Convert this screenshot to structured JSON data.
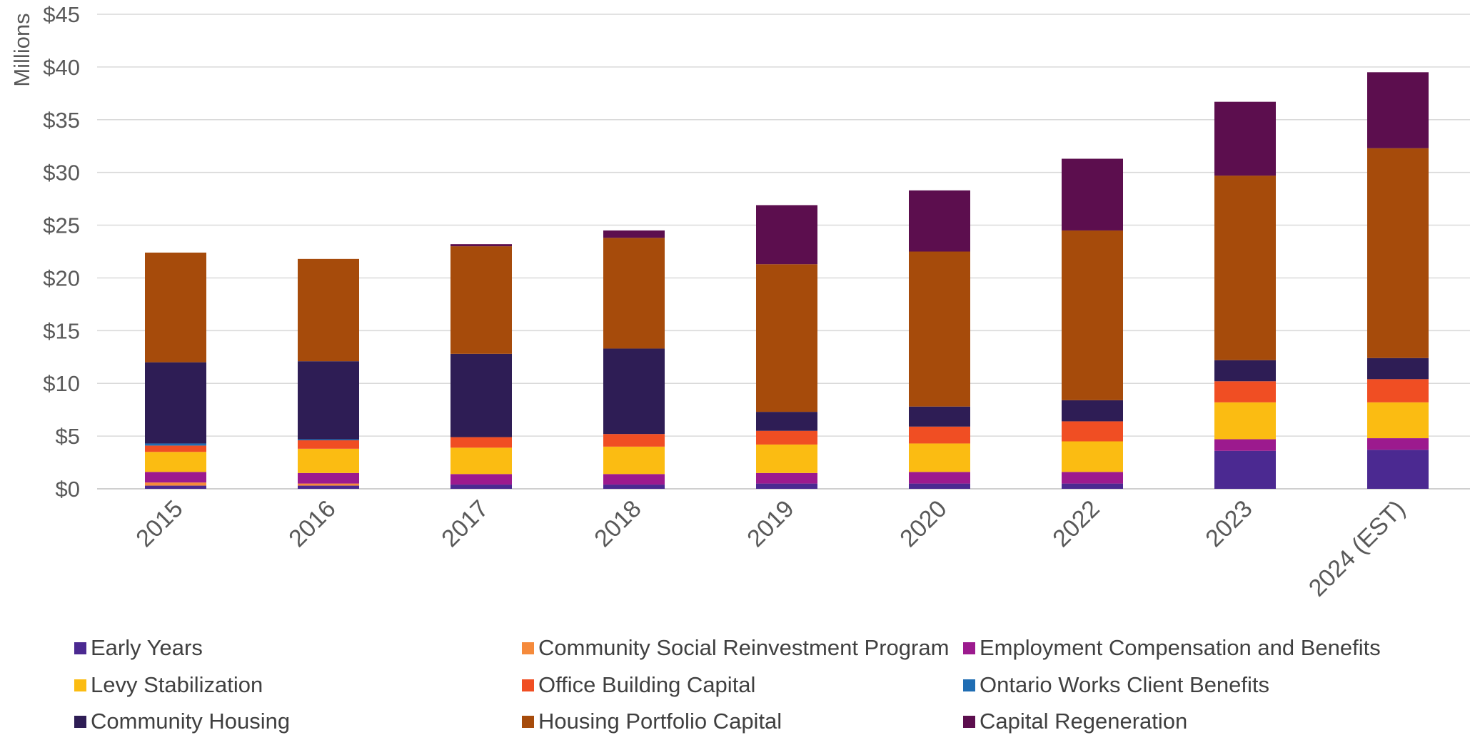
{
  "chart_data": {
    "type": "bar",
    "stacked": true,
    "ylabel": "Millions",
    "ylim": [
      0,
      45
    ],
    "yticks": [
      "$0",
      "$5",
      "$10",
      "$15",
      "$20",
      "$25",
      "$30",
      "$35",
      "$40",
      "$45"
    ],
    "ytick_values": [
      0,
      5,
      10,
      15,
      20,
      25,
      30,
      35,
      40,
      45
    ],
    "grid": true,
    "legend_position": "bottom",
    "categories": [
      "2015",
      "2016",
      "2017",
      "2018",
      "2019",
      "2020",
      "2022",
      "2023",
      "2024 (EST)"
    ],
    "series": [
      {
        "name": "Early Years",
        "color": "#4b2991",
        "values": [
          0.3,
          0.3,
          0.4,
          0.4,
          0.5,
          0.5,
          0.5,
          3.6,
          3.7
        ]
      },
      {
        "name": "Community Social Reinvestment Program",
        "color": "#f58a3b",
        "values": [
          0.3,
          0.2,
          0.0,
          0.0,
          0.0,
          0.0,
          0.0,
          0.0,
          0.0
        ]
      },
      {
        "name": "Employment Compensation and Benefits",
        "color": "#9c1a8e",
        "values": [
          1.0,
          1.0,
          1.0,
          1.0,
          1.0,
          1.1,
          1.1,
          1.1,
          1.1
        ]
      },
      {
        "name": "Levy Stabilization",
        "color": "#fbbc12",
        "values": [
          1.9,
          2.3,
          2.5,
          2.6,
          2.7,
          2.7,
          2.9,
          3.5,
          3.4
        ]
      },
      {
        "name": "Office Building Capital",
        "color": "#f04e23",
        "values": [
          0.6,
          0.8,
          1.0,
          1.2,
          1.3,
          1.6,
          1.9,
          2.0,
          2.2
        ]
      },
      {
        "name": "Ontario Works Client Benefits",
        "color": "#1f6db3",
        "values": [
          0.2,
          0.1,
          0.0,
          0.0,
          0.0,
          0.0,
          0.0,
          0.0,
          0.0
        ]
      },
      {
        "name": "Community Housing",
        "color": "#2e1d55",
        "values": [
          7.7,
          7.4,
          7.9,
          8.1,
          1.8,
          1.9,
          2.0,
          2.0,
          2.0
        ]
      },
      {
        "name": "Housing Portfolio Capital",
        "color": "#a64b0b",
        "values": [
          10.4,
          9.7,
          10.2,
          10.5,
          14.0,
          14.7,
          16.1,
          17.5,
          19.9
        ]
      },
      {
        "name": "Capital Regeneration",
        "color": "#5c0e4e",
        "values": [
          0.0,
          0.0,
          0.2,
          0.7,
          5.6,
          5.8,
          6.8,
          7.0,
          7.2
        ]
      }
    ]
  }
}
